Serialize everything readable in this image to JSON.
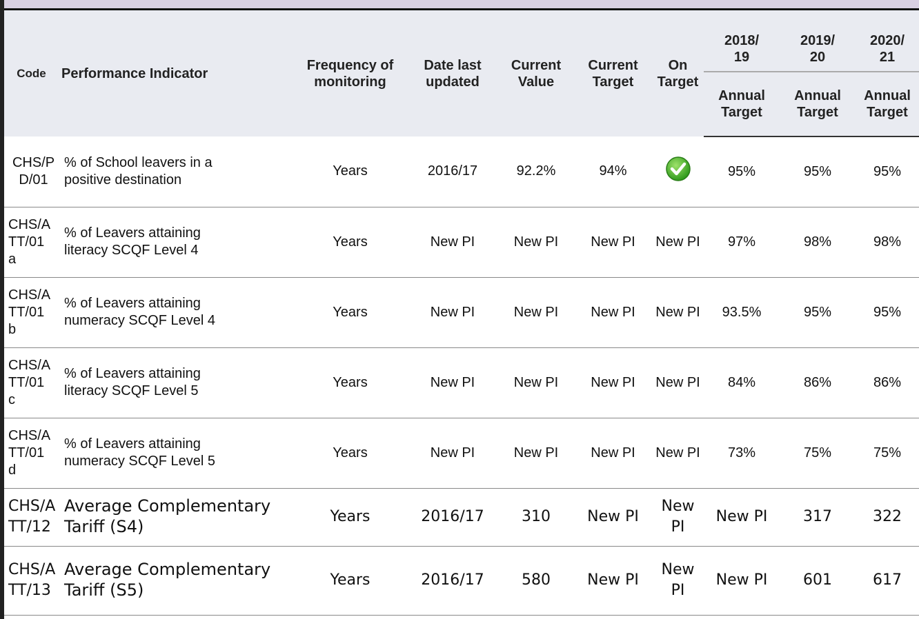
{
  "header": {
    "columns": [
      "Code",
      "Performance Indicator",
      "Frequency of monitoring",
      "Date last updated",
      "Current Value",
      "Current Target",
      "On Target"
    ],
    "years": [
      {
        "year": "2018/19",
        "sub": "Annual Target"
      },
      {
        "year": "2019/20",
        "sub": "Annual Target"
      },
      {
        "year": "2020/21",
        "sub": "Annual Target"
      }
    ]
  },
  "table": {
    "rows": [
      {
        "code": "CHS/PD/01",
        "indicator": "% of School leavers in a positive destination",
        "frequency": "Years",
        "date": "2016/17",
        "value": "92.2%",
        "target": "94%",
        "t1": "95%",
        "t2": "95%",
        "t3": "95%"
      },
      {
        "code": "CHS/ATT/01a",
        "indicator": "% of Leavers attaining literacy SCQF Level 4",
        "frequency": "Years",
        "date": "New PI",
        "value": "New PI",
        "target": "New PI",
        "on_target": "New PI",
        "t1": "97%",
        "t2": "98%",
        "t3": "98%"
      },
      {
        "code": "CHS/ATT/01b",
        "indicator": "% of Leavers attaining numeracy SCQF Level 4",
        "frequency": "Years",
        "date": "New PI",
        "value": "New PI",
        "target": "New PI",
        "on_target": "New PI",
        "t1": "93.5%",
        "t2": "95%",
        "t3": "95%"
      },
      {
        "code": "CHS/ATT/01c",
        "indicator": "% of Leavers attaining literacy SCQF Level 5",
        "frequency": "Years",
        "date": "New PI",
        "value": "New PI",
        "target": "New PI",
        "on_target": "New PI",
        "t1": "84%",
        "t2": "86%",
        "t3": "86%"
      },
      {
        "code": "CHS/ATT/01d",
        "indicator": "% of Leavers attaining numeracy SCQF Level 5",
        "frequency": "Years",
        "date": "New PI",
        "value": "New PI",
        "target": "New PI",
        "on_target": "New PI",
        "t1": "73%",
        "t2": "75%",
        "t3": "75%"
      },
      {
        "code": "CHS/ATT/12",
        "indicator": "Average Complementary Tariff (S4)",
        "frequency": "Years",
        "date": "2016/17",
        "value": "310",
        "target": "New PI",
        "on_target": "New PI",
        "t1": "New PI",
        "t2": "317",
        "t3": "322"
      },
      {
        "code": "CHS/ATT/13",
        "indicator": "Average Complementary Tariff (S5)",
        "frequency": "Years",
        "date": "2016/17",
        "value": "580",
        "target": "New PI",
        "on_target": "New PI",
        "t1": "New PI",
        "t2": "601",
        "t3": "617"
      }
    ]
  }
}
